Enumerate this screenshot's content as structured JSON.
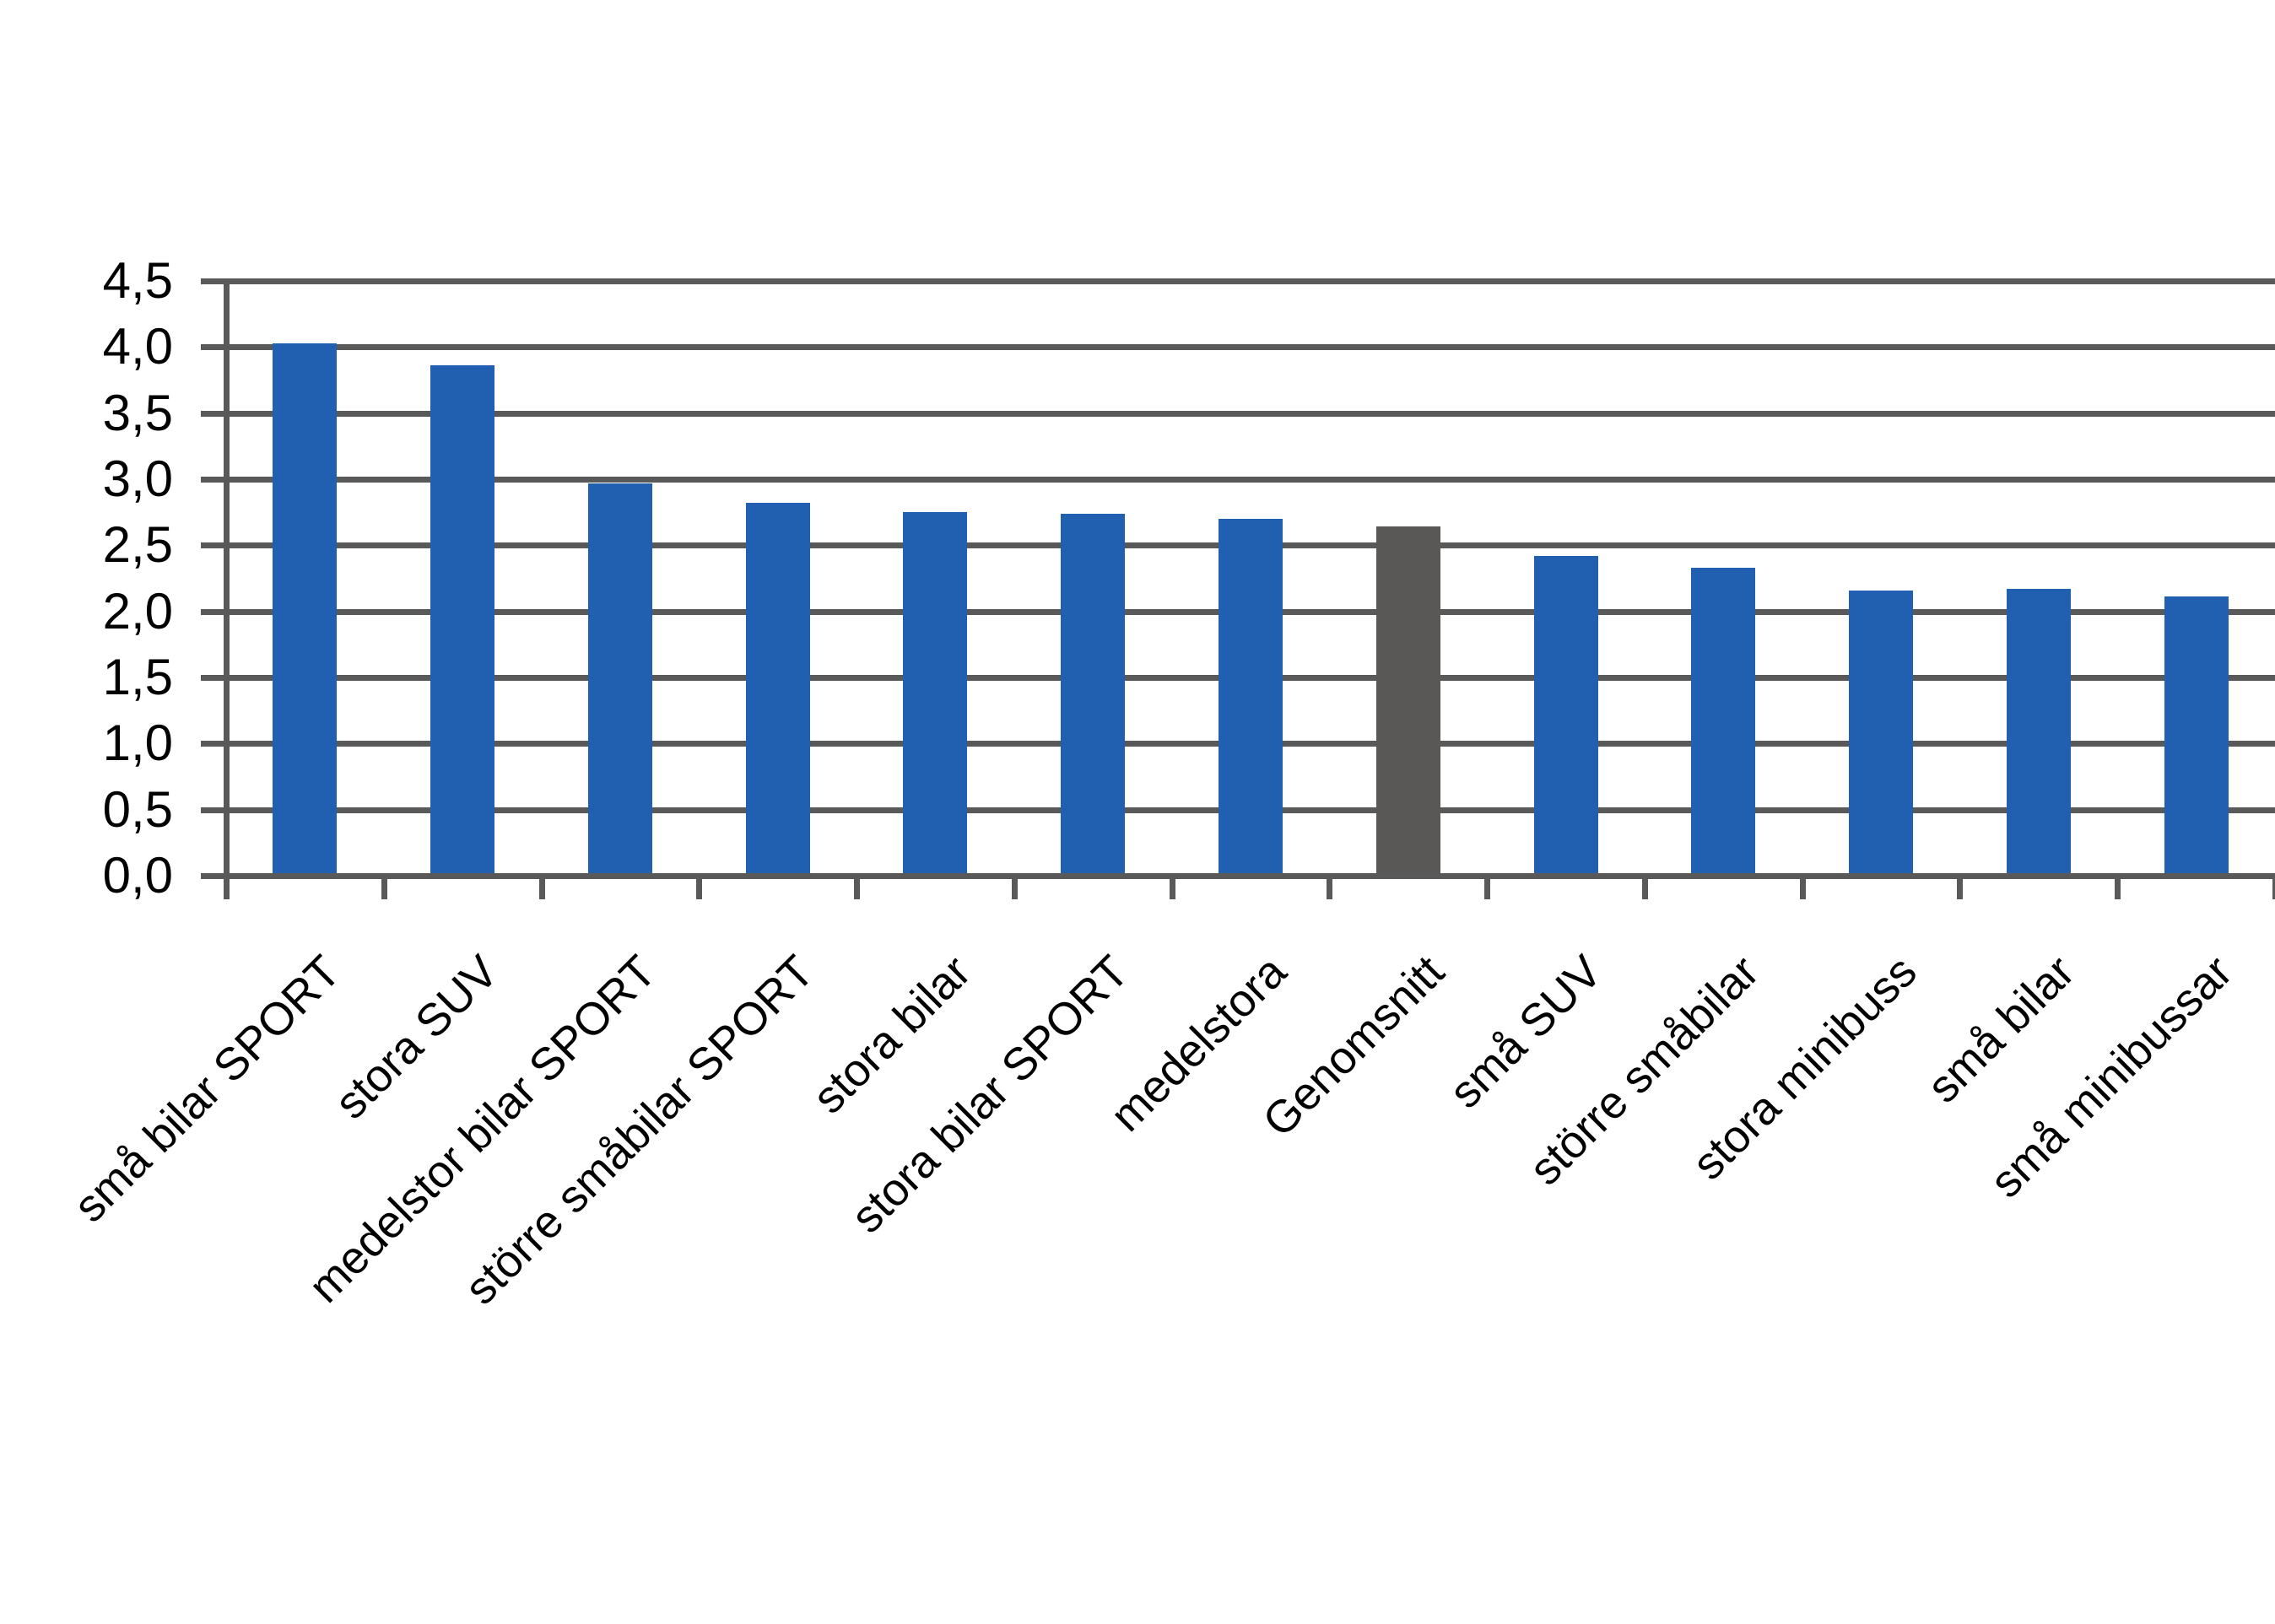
{
  "chart_data": {
    "type": "bar",
    "title": "",
    "xlabel": "",
    "ylabel": "",
    "categories": [
      "små bilar SPORT",
      "stora SUV",
      "medelstor bilar SPORT",
      "större småbilar SPORT",
      "stora bilar",
      "stora bilar SPORT",
      "medelstora",
      "Genomsnitt",
      "små SUV",
      "större småbilar",
      "stora minibuss",
      "små bilar",
      "små minibussar"
    ],
    "values": [
      4.03,
      3.86,
      2.97,
      2.82,
      2.75,
      2.74,
      2.7,
      2.64,
      2.42,
      2.33,
      2.16,
      2.17,
      2.11
    ],
    "highlight_index": 7,
    "highlight_category": "Genomsnitt",
    "ylim": [
      0,
      4.5
    ],
    "ytick_step": 0.5,
    "ytick_labels": [
      "0,0",
      "0,5",
      "1,0",
      "1,5",
      "2,0",
      "2,5",
      "3,0",
      "3,5",
      "4,0",
      "4,5"
    ],
    "grid": true,
    "legend": "none",
    "colors": {
      "bar": "#2160b1",
      "highlight_bar": "#595856",
      "gridline": "#595959",
      "text": "#000000",
      "background": "#ffffff"
    }
  }
}
